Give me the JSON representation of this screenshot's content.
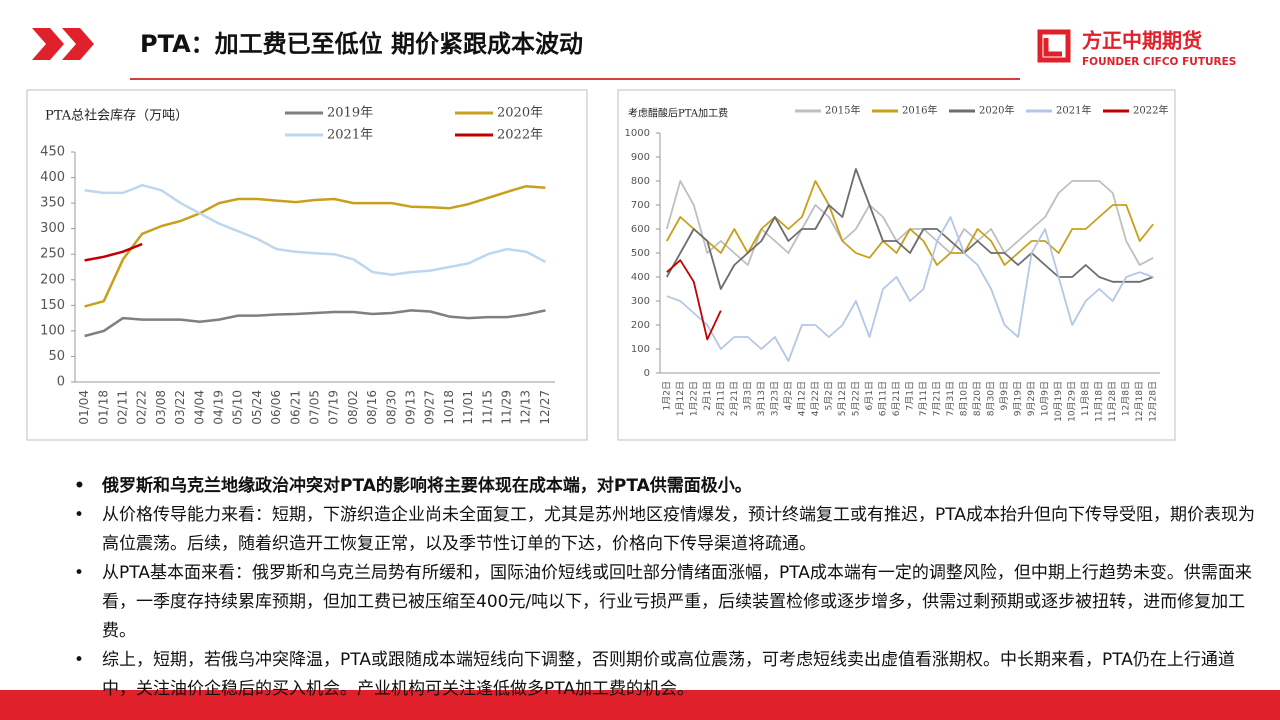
{
  "header": {
    "title": "PTA：加工费已至低位 期价紧跟成本波动",
    "logo_cn": "方正中期期货",
    "logo_en": "FOUNDER CIFCO FUTURES"
  },
  "chart_data": [
    {
      "type": "line",
      "title": "PTA总社会库存（万吨）",
      "categories": [
        "01/04",
        "01/18",
        "02/11",
        "02/22",
        "03/08",
        "03/22",
        "04/04",
        "04/19",
        "05/10",
        "05/24",
        "06/06",
        "06/21",
        "07/05",
        "07/19",
        "08/02",
        "08/16",
        "08/30",
        "09/13",
        "09/27",
        "10/18",
        "11/01",
        "11/15",
        "11/29",
        "12/13",
        "12/27"
      ],
      "series": [
        {
          "name": "2019年",
          "color": "#7f7f7f",
          "values": [
            90,
            100,
            125,
            122,
            122,
            122,
            118,
            122,
            130,
            130,
            132,
            133,
            135,
            137,
            137,
            133,
            135,
            140,
            138,
            128,
            125,
            127,
            127,
            132,
            140
          ]
        },
        {
          "name": "2020年",
          "color": "#c9a01c",
          "values": [
            148,
            158,
            240,
            290,
            305,
            315,
            330,
            350,
            358,
            358,
            355,
            352,
            356,
            358,
            350,
            350,
            350,
            343,
            342,
            340,
            348,
            360,
            372,
            383,
            380
          ]
        },
        {
          "name": "2021年",
          "color": "#bdd7ee",
          "values": [
            375,
            370,
            370,
            385,
            375,
            350,
            330,
            310,
            295,
            280,
            260,
            255,
            252,
            250,
            240,
            215,
            210,
            215,
            218,
            225,
            232,
            250,
            260,
            255,
            235
          ]
        },
        {
          "name": "2022年",
          "color": "#c00000",
          "values": [
            238,
            245,
            255,
            270,
            null,
            null,
            null,
            null,
            null,
            null,
            null,
            null,
            null,
            null,
            null,
            null,
            null,
            null,
            null,
            null,
            null,
            null,
            null,
            null,
            null
          ]
        }
      ],
      "ylim": [
        0,
        450
      ],
      "yticks": [
        0,
        50,
        100,
        150,
        200,
        250,
        300,
        350,
        400,
        450
      ]
    },
    {
      "type": "line",
      "title": "考虑醋酸后PTA加工费",
      "categories": [
        "1月2日",
        "1月12日",
        "1月22日",
        "2月1日",
        "2月11日",
        "2月21日",
        "3月3日",
        "3月13日",
        "3月23日",
        "4月2日",
        "4月12日",
        "4月22日",
        "5月2日",
        "5月12日",
        "5月22日",
        "6月1日",
        "6月11日",
        "6月21日",
        "7月1日",
        "7月11日",
        "7月21日",
        "7月31日",
        "8月10日",
        "8月20日",
        "8月30日",
        "9月9日",
        "9月19日",
        "9月29日",
        "10月9日",
        "10月19日",
        "10月29日",
        "11月8日",
        "11月18日",
        "11月28日",
        "12月8日",
        "12月18日",
        "12月28日"
      ],
      "series": [
        {
          "name": "2015年",
          "color": "#bfbfbf",
          "values": [
            600,
            800,
            700,
            500,
            550,
            500,
            450,
            600,
            550,
            500,
            600,
            700,
            650,
            550,
            600,
            700,
            650,
            550,
            600,
            600,
            550,
            500,
            600,
            550,
            600,
            500,
            550,
            600,
            650,
            750,
            800,
            800,
            800,
            750,
            550,
            450,
            480
          ]
        },
        {
          "name": "2016年",
          "color": "#c9a01c",
          "values": [
            550,
            650,
            600,
            550,
            500,
            600,
            500,
            600,
            650,
            600,
            650,
            800,
            700,
            550,
            500,
            480,
            550,
            500,
            600,
            550,
            450,
            500,
            500,
            600,
            550,
            450,
            500,
            550,
            550,
            500,
            600,
            600,
            650,
            700,
            700,
            550,
            620
          ]
        },
        {
          "name": "2020年",
          "color": "#6d6d6d",
          "values": [
            400,
            500,
            600,
            550,
            350,
            450,
            500,
            550,
            650,
            550,
            600,
            600,
            700,
            650,
            850,
            700,
            550,
            550,
            500,
            600,
            600,
            550,
            500,
            550,
            500,
            500,
            450,
            500,
            450,
            400,
            400,
            450,
            400,
            380,
            380,
            380,
            400
          ]
        },
        {
          "name": "2021年",
          "color": "#b4c7e7",
          "values": [
            320,
            300,
            250,
            200,
            100,
            150,
            150,
            100,
            150,
            50,
            200,
            200,
            150,
            200,
            300,
            150,
            350,
            400,
            300,
            350,
            550,
            650,
            500,
            450,
            350,
            200,
            150,
            500,
            600,
            400,
            200,
            300,
            350,
            300,
            400,
            420,
            400
          ]
        },
        {
          "name": "2022年",
          "color": "#c00000",
          "values": [
            420,
            470,
            380,
            140,
            260,
            null,
            null,
            null,
            null,
            null,
            null,
            null,
            null,
            null,
            null,
            null,
            null,
            null,
            null,
            null,
            null,
            null,
            null,
            null,
            null,
            null,
            null,
            null,
            null,
            null,
            null,
            null,
            null,
            null,
            null,
            null,
            null
          ]
        }
      ],
      "ylim": [
        0,
        1000
      ],
      "yticks": [
        0,
        100,
        200,
        300,
        400,
        500,
        600,
        700,
        800,
        900,
        1000
      ]
    }
  ],
  "bullets": [
    "俄罗斯和乌克兰地缘政治冲突对PTA的影响将主要体现在成本端，对PTA供需面极小。",
    "从价格传导能力来看：短期，下游织造企业尚未全面复工，尤其是苏州地区疫情爆发，预计终端复工或有推迟，PTA成本抬升但向下传导受阻，期价表现为高位震荡。后续，随着织造开工恢复正常，以及季节性订单的下达，价格向下传导渠道将疏通。",
    "从PTA基本面来看：俄罗斯和乌克兰局势有所缓和，国际油价短线或回吐部分情绪面涨幅，PTA成本端有一定的调整风险，但中期上行趋势未变。供需面来看，一季度存持续累库预期，但加工费已被压缩至400元/吨以下，行业亏损严重，后续装置检修或逐步增多，供需过剩预期或逐步被扭转，进而修复加工费。",
    "综上，短期，若俄乌冲突降温，PTA或跟随成本端短线向下调整，否则期价或高位震荡，可考虑短线卖出虚值看涨期权。中长期来看，PTA仍在上行通道中，关注油价企稳后的买入机会。产业机构可关注逢低做多PTA加工费的机会。"
  ]
}
